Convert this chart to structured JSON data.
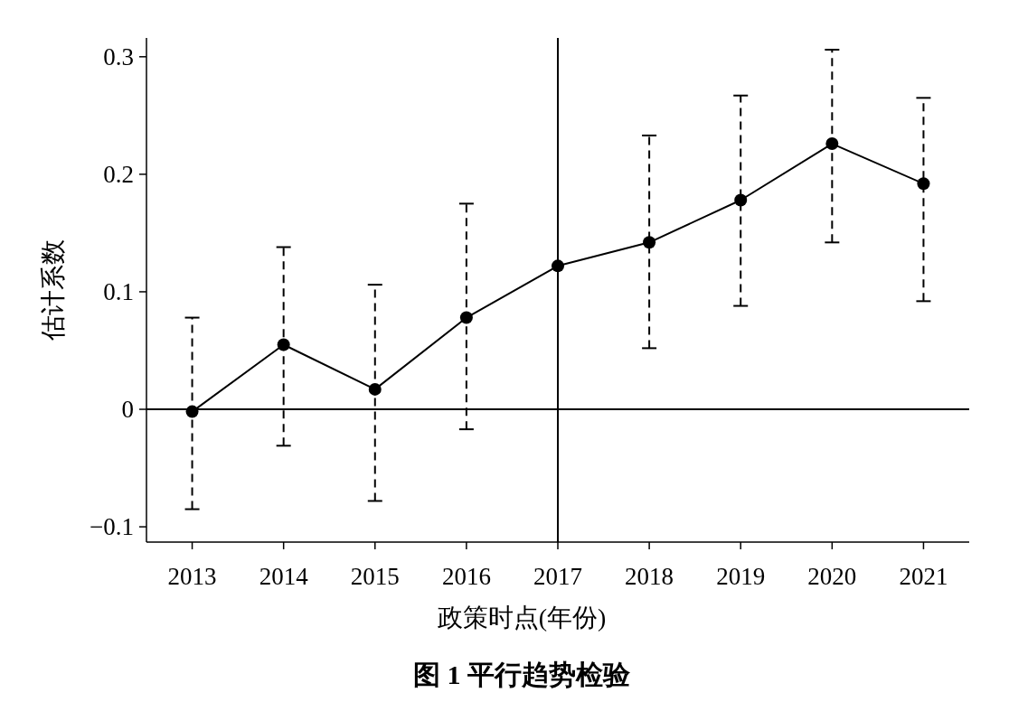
{
  "chart_data": {
    "type": "line",
    "title": "图 1  平行趋势检验",
    "xlabel": "政策时点(年份)",
    "ylabel": "估计系数",
    "categories": [
      "2013",
      "2014",
      "2015",
      "2016",
      "2017",
      "2018",
      "2019",
      "2020",
      "2021"
    ],
    "series": [
      {
        "color": "#000000",
        "values": [
          -0.002,
          0.055,
          0.017,
          0.078,
          0.122,
          0.142,
          0.178,
          0.226,
          0.192
        ],
        "errors": [
          [
            -0.085,
            0.078
          ],
          [
            -0.031,
            0.138
          ],
          [
            -0.078,
            0.106
          ],
          [
            -0.017,
            0.175
          ],
          null,
          [
            0.052,
            0.233
          ],
          [
            0.088,
            0.267
          ],
          [
            0.142,
            0.306
          ],
          [
            0.092,
            0.265
          ]
        ]
      }
    ],
    "ylim": [
      -0.113,
      0.316
    ],
    "yticks": [
      {
        "value": -0.1,
        "label": "−0.1"
      },
      0,
      0.1,
      0.2,
      0.3
    ],
    "ref_lines": [
      {
        "axis": "x",
        "value": "2017",
        "color": "#000000"
      },
      {
        "axis": "y",
        "value": 0,
        "color": "#000000"
      }
    ],
    "marker": "circle",
    "line_style": "solid",
    "grid": false
  }
}
